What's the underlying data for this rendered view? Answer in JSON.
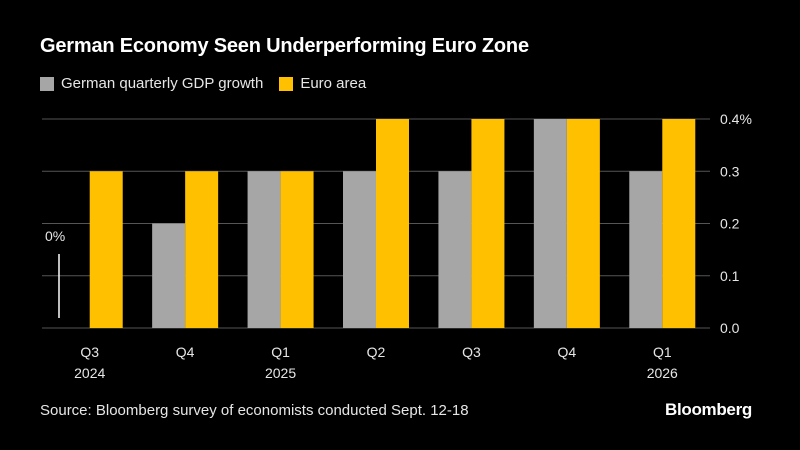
{
  "title": "German Economy Seen Underperforming Euro Zone",
  "source": "Source: Bloomberg survey of economists conducted Sept. 12-18",
  "brand": "Bloomberg",
  "colors": {
    "background": "#000000",
    "german": "#a6a6a6",
    "euro": "#ffc000",
    "grid": "#555555",
    "text": "#ffffff"
  },
  "chart_data": {
    "type": "bar",
    "title": "German Economy Seen Underperforming Euro Zone",
    "categories": [
      "Q3",
      "Q4",
      "Q1",
      "Q2",
      "Q3",
      "Q4",
      "Q1"
    ],
    "category_years": [
      "2024",
      "",
      "2025",
      "",
      "",
      "",
      "2026"
    ],
    "series": [
      {
        "name": "German quarterly GDP growth",
        "color": "#a6a6a6",
        "values": [
          0,
          0.2,
          0.3,
          0.3,
          0.3,
          0.4,
          0.3
        ]
      },
      {
        "name": "Euro area",
        "color": "#ffc000",
        "values": [
          0.3,
          0.3,
          0.3,
          0.4,
          0.4,
          0.4,
          0.4
        ]
      }
    ],
    "yticks": [
      "0.0",
      "0.1",
      "0.2",
      "0.3",
      "0.4%"
    ],
    "ylim": [
      0,
      0.4
    ],
    "zero_annotation": "0%",
    "xlabel": "",
    "ylabel": "",
    "legend_position": "top-left",
    "yaxis_side": "right",
    "grid": true
  }
}
